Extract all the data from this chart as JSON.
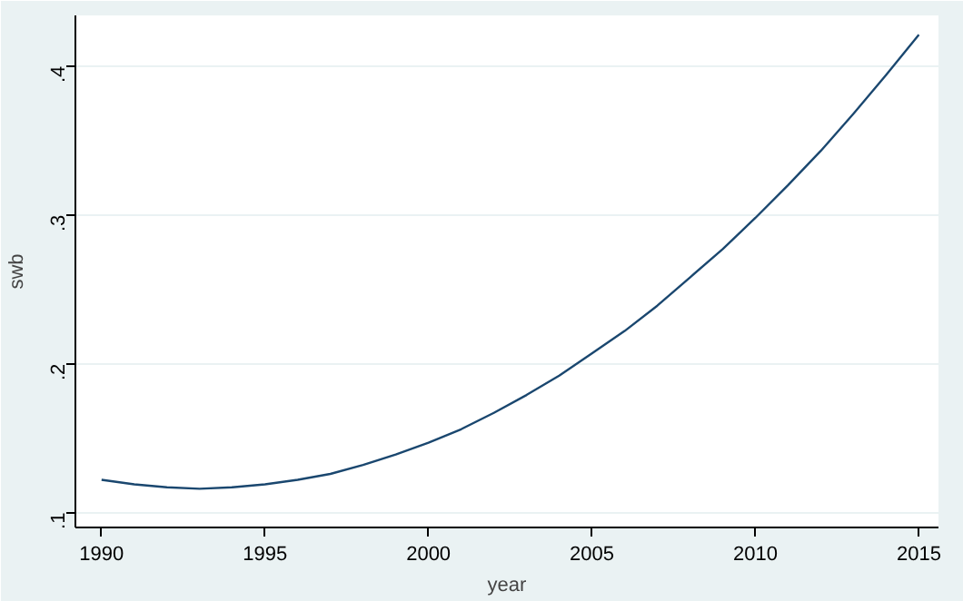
{
  "chart_data": {
    "type": "line",
    "xlabel": "year",
    "ylabel": "swb",
    "x": [
      1990,
      1991,
      1992,
      1993,
      1994,
      1995,
      1996,
      1997,
      1998,
      1999,
      2000,
      2001,
      2002,
      2003,
      2004,
      2005,
      2006,
      2007,
      2008,
      2009,
      2010,
      2011,
      2012,
      2013,
      2014,
      2015
    ],
    "series": [
      {
        "color": "#1a476f",
        "values": [
          0.122,
          0.119,
          0.117,
          0.116,
          0.117,
          0.119,
          0.122,
          0.126,
          0.132,
          0.139,
          0.147,
          0.156,
          0.167,
          0.179,
          0.192,
          0.207,
          0.222,
          0.239,
          0.258,
          0.277,
          0.298,
          0.32,
          0.343,
          0.368,
          0.394,
          0.421
        ]
      }
    ],
    "xlim": [
      1989.2,
      2015.6
    ],
    "ylim": [
      0.09,
      0.434
    ],
    "xticks": [
      1990,
      1995,
      2000,
      2005,
      2010,
      2015
    ],
    "yticks": [
      {
        "value": 0.1,
        "label": ".1"
      },
      {
        "value": 0.2,
        "label": ".2"
      },
      {
        "value": 0.3,
        "label": ".3"
      },
      {
        "value": 0.4,
        "label": ".4"
      }
    ],
    "grid": "y",
    "line_style": "solid",
    "marker": "none"
  }
}
